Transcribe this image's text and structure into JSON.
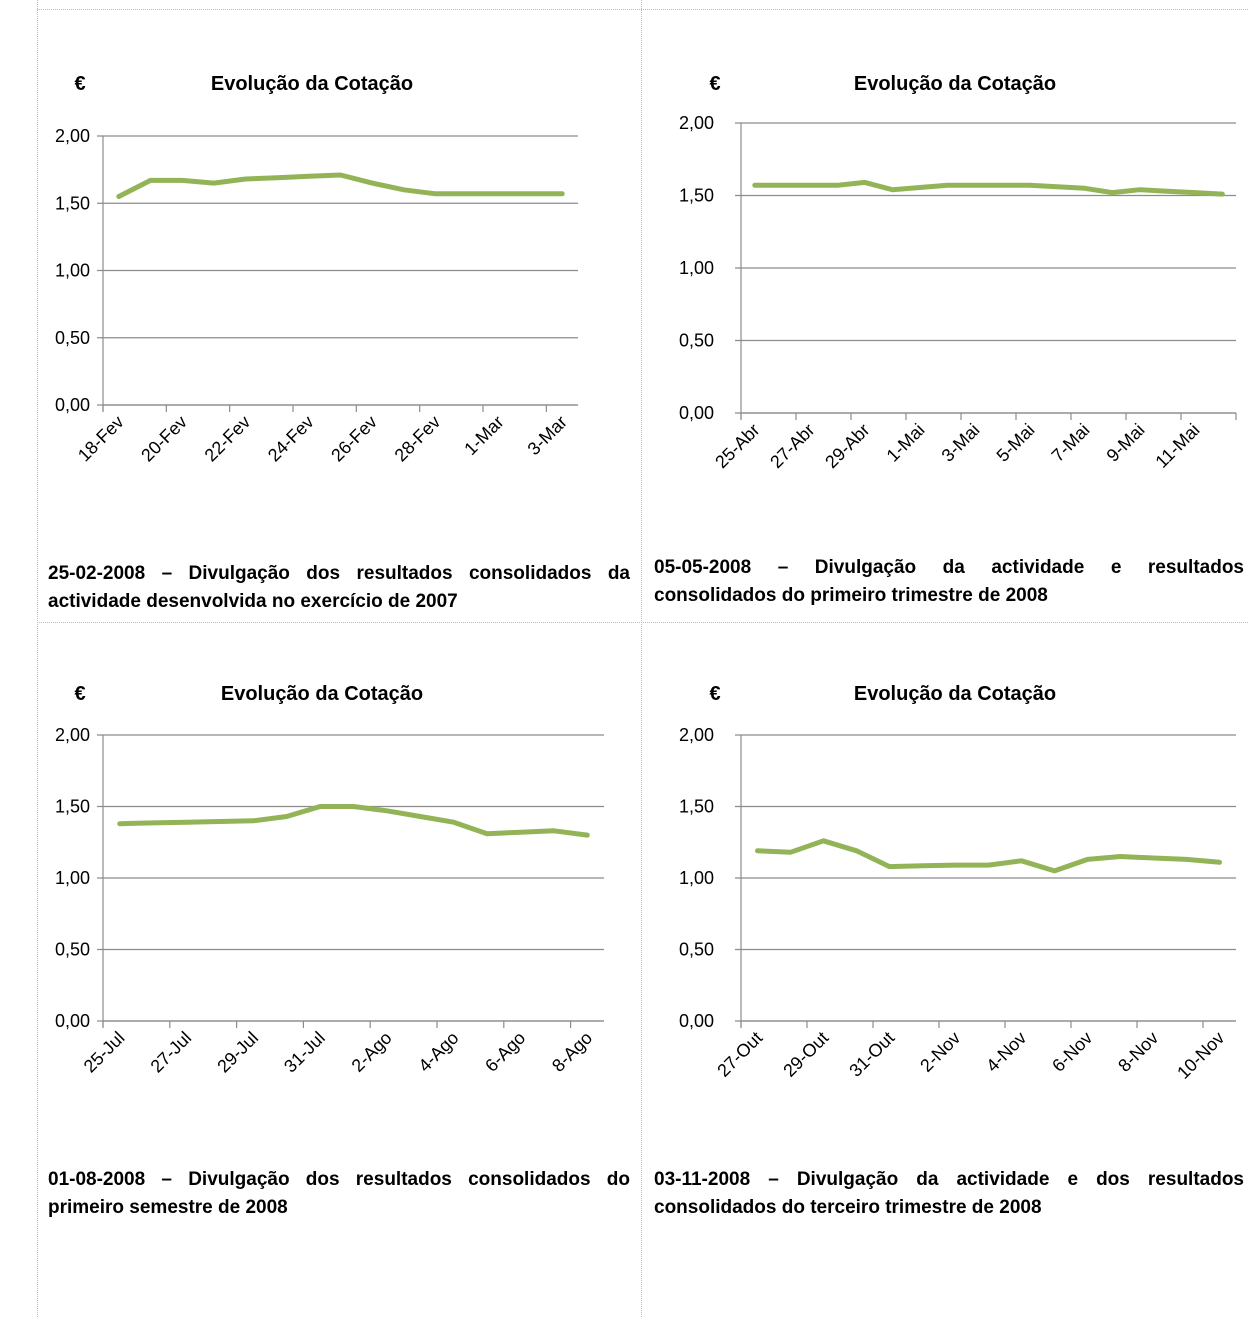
{
  "colors": {
    "line": "#92b457",
    "grid": "#8c8c8c",
    "axis": "#8c8c8c",
    "border": "#b5c98a"
  },
  "panels": [
    {
      "currency": "€",
      "title": "Evolução da Cotação",
      "caption": "25-02-2008 – Divulgação dos resultados consolidados da actividade desenvolvida no exercício de 2007",
      "chart_data": {
        "type": "line",
        "title": "Evolução da Cotação",
        "ylabel": "€",
        "ylim": [
          0,
          2
        ],
        "yticks": [
          "0,00",
          "0,50",
          "1,00",
          "1,50",
          "2,00"
        ],
        "ytick_values": [
          0,
          0.5,
          1,
          1.5,
          2
        ],
        "x": [
          "18-Fev",
          "19-Fev",
          "20-Fev",
          "21-Fev",
          "22-Fev",
          "23-Fev",
          "24-Fev",
          "25-Fev",
          "26-Fev",
          "27-Fev",
          "28-Fev",
          "29-Fev",
          "1-Mar",
          "2-Mar",
          "3-Mar"
        ],
        "xtick_labels": [
          "18-Fev",
          "20-Fev",
          "22-Fev",
          "24-Fev",
          "26-Fev",
          "28-Fev",
          "1-Mar",
          "3-Mar"
        ],
        "series": [
          {
            "values": [
              1.55,
              1.67,
              1.67,
              1.65,
              1.68,
              1.69,
              1.7,
              1.71,
              1.65,
              1.6,
              1.57,
              1.57,
              1.57,
              1.57,
              1.57
            ]
          }
        ],
        "grid": true
      }
    },
    {
      "currency": "€",
      "title": "Evolução da Cotação",
      "caption": "05-05-2008 – Divulgação da actividade e resultados consolidados do primeiro trimestre de 2008",
      "chart_data": {
        "type": "line",
        "title": "Evolução da Cotação",
        "ylabel": "€",
        "ylim": [
          0,
          2
        ],
        "yticks": [
          "0,00",
          "0,50",
          "1,00",
          "1,50",
          "2,00"
        ],
        "ytick_values": [
          0,
          0.5,
          1,
          1.5,
          2
        ],
        "x": [
          "25-Abr",
          "26-Abr",
          "27-Abr",
          "28-Abr",
          "29-Abr",
          "30-Abr",
          "1-Mai",
          "2-Mai",
          "3-Mai",
          "4-Mai",
          "5-Mai",
          "6-Mai",
          "7-Mai",
          "8-Mai",
          "9-Mai",
          "10-Mai",
          "11-Mai",
          "12-Mai"
        ],
        "xtick_labels": [
          "25-Abr",
          "27-Abr",
          "29-Abr",
          "1-Mai",
          "3-Mai",
          "5-Mai",
          "7-Mai",
          "9-Mai",
          "11-Mai"
        ],
        "series": [
          {
            "values": [
              1.57,
              1.57,
              1.57,
              1.57,
              1.59,
              1.54,
              1.555,
              1.57,
              1.57,
              1.57,
              1.57,
              1.56,
              1.55,
              1.52,
              1.54,
              1.53,
              1.52,
              1.51
            ]
          }
        ],
        "grid": true
      }
    },
    {
      "currency": "€",
      "title": "Evolução da Cotação",
      "caption": "01-08-2008 – Divulgação dos resultados consolidados do primeiro semestre de 2008",
      "chart_data": {
        "type": "line",
        "title": "Evolução da Cotação",
        "ylabel": "€",
        "ylim": [
          0,
          2
        ],
        "yticks": [
          "0,00",
          "0,50",
          "1,00",
          "1,50",
          "2,00"
        ],
        "ytick_values": [
          0,
          0.5,
          1,
          1.5,
          2
        ],
        "x": [
          "25-Jul",
          "26-Jul",
          "27-Jul",
          "28-Jul",
          "29-Jul",
          "30-Jul",
          "31-Jul",
          "1-Ago",
          "2-Ago",
          "3-Ago",
          "4-Ago",
          "5-Ago",
          "6-Ago",
          "7-Ago",
          "8-Ago"
        ],
        "xtick_labels": [
          "25-Jul",
          "27-Jul",
          "29-Jul",
          "31-Jul",
          "2-Ago",
          "4-Ago",
          "6-Ago",
          "8-Ago"
        ],
        "series": [
          {
            "values": [
              1.38,
              1.385,
              1.39,
              1.395,
              1.4,
              1.43,
              1.5,
              1.5,
              1.47,
              1.43,
              1.39,
              1.31,
              1.32,
              1.33,
              1.3
            ]
          }
        ],
        "grid": true
      }
    },
    {
      "currency": "€",
      "title": "Evolução da Cotação",
      "caption": "03-11-2008 – Divulgação da actividade e dos resultados consolidados do terceiro trimestre de 2008",
      "chart_data": {
        "type": "line",
        "title": "Evolução da Cotação",
        "ylabel": "€",
        "ylim": [
          0,
          2
        ],
        "yticks": [
          "0,00",
          "0,50",
          "1,00",
          "1,50",
          "2,00"
        ],
        "ytick_values": [
          0,
          0.5,
          1,
          1.5,
          2
        ],
        "x": [
          "27-Out",
          "28-Out",
          "29-Out",
          "30-Out",
          "31-Out",
          "1-Nov",
          "2-Nov",
          "3-Nov",
          "4-Nov",
          "5-Nov",
          "6-Nov",
          "7-Nov",
          "8-Nov",
          "9-Nov",
          "10-Nov"
        ],
        "xtick_labels": [
          "27-Out",
          "29-Out",
          "31-Out",
          "2-Nov",
          "4-Nov",
          "6-Nov",
          "8-Nov",
          "10-Nov"
        ],
        "series": [
          {
            "values": [
              1.19,
              1.18,
              1.26,
              1.19,
              1.08,
              1.085,
              1.09,
              1.09,
              1.12,
              1.05,
              1.13,
              1.15,
              1.14,
              1.13,
              1.11
            ]
          }
        ],
        "grid": true
      }
    }
  ]
}
